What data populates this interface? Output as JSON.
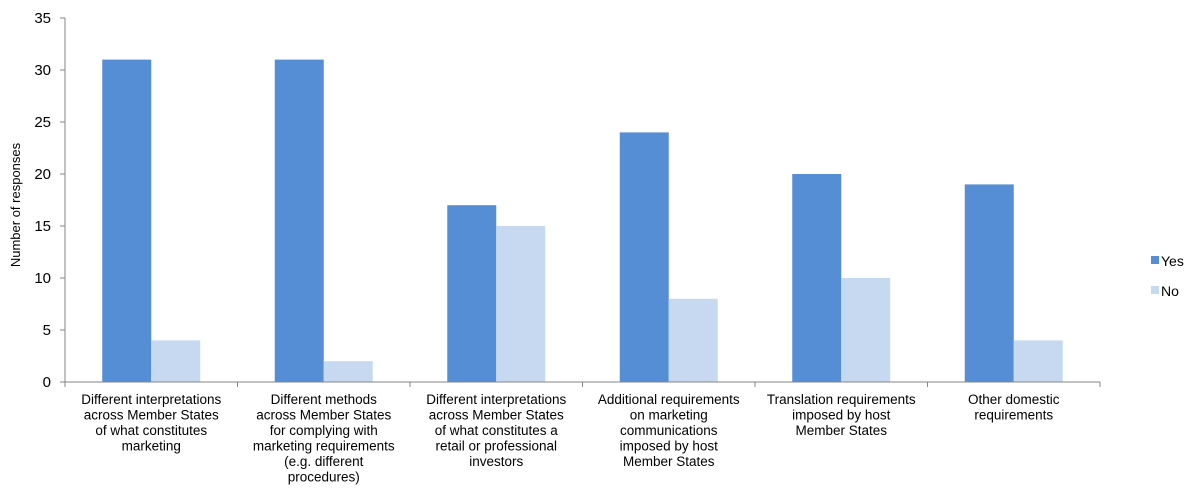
{
  "chart_data": {
    "type": "bar",
    "title": "",
    "xlabel": "",
    "ylabel": "Number of responses",
    "ylim": [
      0,
      35
    ],
    "yticks": [
      0,
      5,
      10,
      15,
      20,
      25,
      30,
      35
    ],
    "grid": false,
    "legend_position": "right",
    "categories": [
      [
        "Different interpretations",
        "across Member States",
        "of what constitutes",
        "marketing"
      ],
      [
        "Different methods",
        "across Member States",
        "for complying with",
        "marketing requirements",
        "(e.g. different",
        "procedures)"
      ],
      [
        "Different interpretations",
        "across Member States",
        "of what constitutes a",
        "retail or professional",
        "investors"
      ],
      [
        "Additional requirements",
        "on marketing",
        "communications",
        "imposed by host",
        "Member States"
      ],
      [
        "Translation requirements",
        "imposed by host",
        "Member States"
      ],
      [
        "Other domestic",
        "requirements"
      ]
    ],
    "series": [
      {
        "name": "Yes",
        "color": "#558ed5",
        "values": [
          31,
          31,
          17,
          24,
          20,
          19
        ]
      },
      {
        "name": "No",
        "color": "#c6d9f1",
        "values": [
          4,
          2,
          15,
          8,
          10,
          4
        ]
      }
    ]
  }
}
